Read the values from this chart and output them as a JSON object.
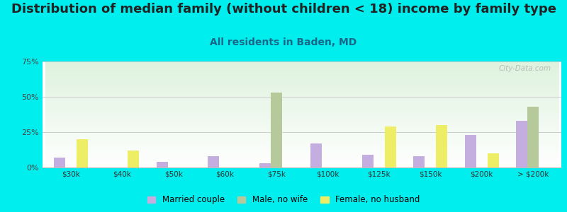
{
  "title": "Distribution of median family (without children < 18) income by family type",
  "subtitle": "All residents in Baden, MD",
  "categories": [
    "$30k",
    "$40k",
    "$50k",
    "$60k",
    "$75k",
    "$100k",
    "$125k",
    "$150k",
    "$200k",
    "> $200k"
  ],
  "series": [
    {
      "name": "Married couple",
      "color": "#c4aee0",
      "values": [
        7,
        0,
        4,
        8,
        3,
        17,
        9,
        8,
        23,
        33
      ]
    },
    {
      "name": "Male, no wife",
      "color": "#b5c99a",
      "values": [
        0,
        0,
        0,
        0,
        53,
        0,
        0,
        0,
        0,
        43
      ]
    },
    {
      "name": "Female, no husband",
      "color": "#eeee66",
      "values": [
        20,
        12,
        0,
        0,
        0,
        0,
        29,
        30,
        10,
        0
      ]
    }
  ],
  "ylim": [
    0,
    75
  ],
  "yticks": [
    0,
    25,
    50,
    75
  ],
  "ytick_labels": [
    "0%",
    "25%",
    "50%",
    "75%"
  ],
  "background_color": "#00eeee",
  "title_color": "#222222",
  "title_fontsize": 13,
  "subtitle_fontsize": 10,
  "subtitle_color": "#1a6688",
  "bar_width": 0.22,
  "watermark": "City-Data.com"
}
